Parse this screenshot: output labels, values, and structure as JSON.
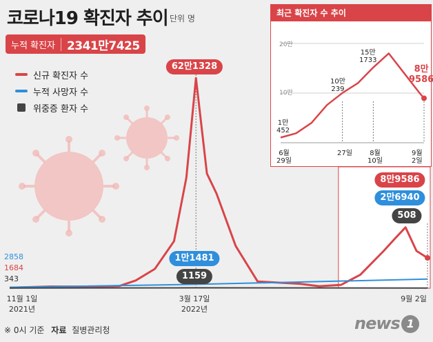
{
  "title": "코로나19 확진자 추이",
  "unit": "단위 명",
  "cumulative": {
    "label": "누적 확진자",
    "value": "2341만7425"
  },
  "legend": [
    {
      "label": "신규 확진자 수",
      "color": "#d94448"
    },
    {
      "label": "누적 사망자 수",
      "color": "#2f8fdc"
    },
    {
      "label": "위중증 환자 수",
      "color": "#444444"
    }
  ],
  "annotations": {
    "peak_label": "62만1328",
    "deaths_mid_label": "1만1481",
    "severe_mid_label": "1159",
    "latest_cases_label": "8만9586",
    "latest_deaths_label": "2만6940",
    "latest_severe_label": "508",
    "start_deaths": "2858",
    "start_cases": "1684",
    "start_severe": "343"
  },
  "x_labels": {
    "start": "11월 1일",
    "start_year": "2021년",
    "mid": "3월 17일",
    "mid_year": "2022년",
    "end": "9월 2일"
  },
  "source": {
    "note": "※ 0시 기준",
    "label": "자료",
    "name": "질병관리청"
  },
  "inset": {
    "title": "최근 확진자 수 추이",
    "gridlines": [
      "20만",
      "10만"
    ],
    "point_labels": [
      "1만\n452",
      "10만\n239",
      "15만\n1733",
      "8만\n9586"
    ],
    "x_labels": [
      "6월\n29일",
      "27일",
      "8월\n10일",
      "9월\n2일"
    ]
  },
  "logo": "news",
  "colors": {
    "cases": "#d94448",
    "deaths": "#2f8fdc",
    "severe": "#444444",
    "virus": "#f2b8b5"
  },
  "chart_data": [
    {
      "type": "line",
      "title": "코로나19 확진자 추이",
      "x_range": [
        "2021-11-01",
        "2022-09-02"
      ],
      "ylim": [
        0,
        640000
      ],
      "series": [
        {
          "name": "신규 확진자 수",
          "x": [
            "2021-11-01",
            "2021-12-01",
            "2022-01-01",
            "2022-01-20",
            "2022-02-01",
            "2022-02-15",
            "2022-03-01",
            "2022-03-10",
            "2022-03-17",
            "2022-03-25",
            "2022-04-01",
            "2022-04-15",
            "2022-05-01",
            "2022-06-01",
            "2022-06-15",
            "2022-07-01",
            "2022-07-15",
            "2022-08-01",
            "2022-08-10",
            "2022-08-17",
            "2022-08-25",
            "2022-09-02"
          ],
          "values": [
            1684,
            5000,
            4500,
            6600,
            22900,
            57100,
            139000,
            327000,
            621328,
            339000,
            280000,
            125000,
            20000,
            13000,
            6000,
            10000,
            40000,
            110000,
            150000,
            180000,
            110000,
            89586
          ]
        },
        {
          "name": "누적 사망자 수",
          "x": [
            "2021-11-01",
            "2022-03-17",
            "2022-09-02"
          ],
          "values": [
            2858,
            11481,
            26940
          ]
        },
        {
          "name": "위중증 환자 수",
          "x": [
            "2021-11-01",
            "2022-03-17",
            "2022-09-02"
          ],
          "values": [
            343,
            1159,
            508
          ]
        }
      ]
    },
    {
      "type": "line",
      "title": "최근 확진자 수 추이",
      "x_range": [
        "2022-06-29",
        "2022-09-02"
      ],
      "ylim": [
        0,
        200000
      ],
      "series": [
        {
          "name": "신규 확진자 수",
          "x": [
            "2022-06-29",
            "2022-07-06",
            "2022-07-13",
            "2022-07-20",
            "2022-07-27",
            "2022-08-03",
            "2022-08-10",
            "2022-08-17",
            "2022-08-24",
            "2022-08-31",
            "2022-09-02"
          ],
          "values": [
            10452,
            19000,
            40000,
            76000,
            100239,
            120000,
            151733,
            180000,
            140000,
            100000,
            89586
          ]
        }
      ]
    }
  ]
}
